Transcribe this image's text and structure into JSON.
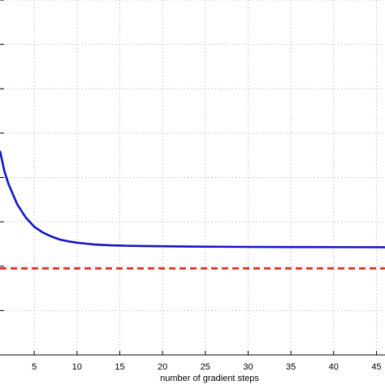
{
  "chart_data": {
    "type": "line",
    "title": "",
    "xlabel": "number of gradient steps",
    "ylabel": "",
    "xlim": [
      1,
      46
    ],
    "ylim": [
      0,
      8
    ],
    "grid": true,
    "x_ticks": [
      5,
      10,
      15,
      20,
      25,
      30,
      35,
      40,
      45
    ],
    "x_tick_labels": [
      "5",
      "10",
      "15",
      "20",
      "25",
      "30",
      "35",
      "40",
      "45"
    ],
    "y_gridlines": [
      1,
      2,
      3,
      4,
      5,
      6,
      7,
      8
    ],
    "series": [
      {
        "type": "line",
        "color": "#1515c8",
        "style": "solid",
        "x": [
          1,
          1.5,
          2,
          3,
          4,
          5,
          6,
          7,
          8,
          9,
          10,
          11,
          12,
          13,
          14,
          15,
          16,
          18,
          20,
          22,
          25,
          28,
          30,
          35,
          40,
          45,
          46
        ],
        "y": [
          4.6,
          4.15,
          3.85,
          3.4,
          3.1,
          2.89,
          2.76,
          2.67,
          2.6,
          2.56,
          2.53,
          2.51,
          2.49,
          2.48,
          2.47,
          2.465,
          2.46,
          2.455,
          2.45,
          2.445,
          2.44,
          2.437,
          2.435,
          2.432,
          2.43,
          2.428,
          2.427
        ]
      },
      {
        "type": "hline",
        "color": "#e8231c",
        "style": "dashed",
        "y": 1.95
      }
    ]
  }
}
